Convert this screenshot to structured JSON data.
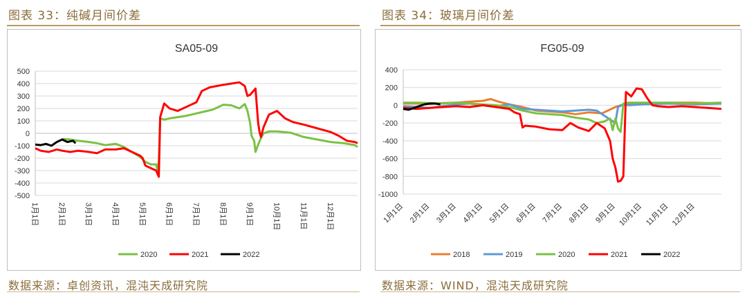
{
  "captions": {
    "left": "图表 33：纯碱月间价差",
    "right": "图表 34：玻璃月间价差"
  },
  "sources": {
    "left": "数据来源：卓创资讯，混沌天成研究院",
    "right": "数据来源：WIND，混沌天成研究院"
  },
  "chart_data": [
    {
      "type": "line",
      "title": "SA05-09",
      "x_domain": [
        1,
        13
      ],
      "x_ticks": [
        "1月1日",
        "2月1日",
        "3月1日",
        "4月1日",
        "5月1日",
        "6月1日",
        "7月1日",
        "8月1日",
        "9月1日",
        "10月1日",
        "11月1日",
        "12月1日"
      ],
      "y_ticks": [
        "500",
        "400",
        "300",
        "200",
        "100",
        "0",
        "-100",
        "-200",
        "-300",
        "-400",
        "-500"
      ],
      "ylim": [
        -500,
        500
      ],
      "grid": true,
      "legend_position": "bottom",
      "series": [
        {
          "name": "2020",
          "color": "#7ac143",
          "points": [
            [
              2.0,
              -45
            ],
            [
              2.3,
              -50
            ],
            [
              2.6,
              -60
            ],
            [
              3.0,
              -70
            ],
            [
              3.3,
              -80
            ],
            [
              3.6,
              -95
            ],
            [
              4.0,
              -85
            ],
            [
              4.3,
              -110
            ],
            [
              4.6,
              -150
            ],
            [
              4.9,
              -190
            ],
            [
              5.1,
              -230
            ],
            [
              5.3,
              -250
            ],
            [
              5.5,
              -250
            ],
            [
              5.55,
              -300
            ],
            [
              5.6,
              -220
            ],
            [
              5.65,
              120
            ],
            [
              5.8,
              110
            ],
            [
              6.0,
              120
            ],
            [
              6.3,
              130
            ],
            [
              6.6,
              140
            ],
            [
              7.0,
              160
            ],
            [
              7.3,
              175
            ],
            [
              7.6,
              190
            ],
            [
              8.0,
              230
            ],
            [
              8.3,
              225
            ],
            [
              8.6,
              200
            ],
            [
              8.8,
              235
            ],
            [
              8.9,
              180
            ],
            [
              9.0,
              80
            ],
            [
              9.05,
              -20
            ],
            [
              9.1,
              -40
            ],
            [
              9.15,
              -60
            ],
            [
              9.2,
              -150
            ],
            [
              9.3,
              -90
            ],
            [
              9.4,
              -40
            ],
            [
              9.5,
              0
            ],
            [
              9.7,
              15
            ],
            [
              10.0,
              15
            ],
            [
              10.5,
              5
            ],
            [
              11.0,
              -30
            ],
            [
              11.5,
              -50
            ],
            [
              12.0,
              -70
            ],
            [
              12.5,
              -80
            ],
            [
              12.9,
              -95
            ],
            [
              13.0,
              -110
            ]
          ]
        },
        {
          "name": "2021",
          "color": "#ff0000",
          "points": [
            [
              1.0,
              -120
            ],
            [
              1.2,
              -140
            ],
            [
              1.5,
              -150
            ],
            [
              1.8,
              -130
            ],
            [
              2.0,
              -140
            ],
            [
              2.3,
              -150
            ],
            [
              2.6,
              -140
            ],
            [
              3.0,
              -150
            ],
            [
              3.3,
              -160
            ],
            [
              3.6,
              -130
            ],
            [
              4.0,
              -130
            ],
            [
              4.3,
              -120
            ],
            [
              4.6,
              -150
            ],
            [
              4.9,
              -180
            ],
            [
              5.0,
              -200
            ],
            [
              5.1,
              -260
            ],
            [
              5.3,
              -280
            ],
            [
              5.5,
              -300
            ],
            [
              5.6,
              -350
            ],
            [
              5.65,
              130
            ],
            [
              5.8,
              240
            ],
            [
              6.0,
              200
            ],
            [
              6.3,
              180
            ],
            [
              6.6,
              210
            ],
            [
              7.0,
              250
            ],
            [
              7.2,
              340
            ],
            [
              7.5,
              370
            ],
            [
              8.0,
              390
            ],
            [
              8.3,
              400
            ],
            [
              8.6,
              410
            ],
            [
              8.8,
              380
            ],
            [
              8.9,
              300
            ],
            [
              9.0,
              310
            ],
            [
              9.2,
              360
            ],
            [
              9.3,
              80
            ],
            [
              9.35,
              10
            ],
            [
              9.4,
              -30
            ],
            [
              9.5,
              50
            ],
            [
              9.7,
              150
            ],
            [
              10.0,
              180
            ],
            [
              10.3,
              120
            ],
            [
              10.6,
              90
            ],
            [
              11.0,
              70
            ],
            [
              11.5,
              40
            ],
            [
              12.0,
              10
            ],
            [
              12.3,
              -20
            ],
            [
              12.6,
              -60
            ],
            [
              12.9,
              -70
            ],
            [
              13.0,
              -80
            ]
          ]
        },
        {
          "name": "2022",
          "color": "#000000",
          "points": [
            [
              1.0,
              -90
            ],
            [
              1.2,
              -95
            ],
            [
              1.4,
              -85
            ],
            [
              1.6,
              -100
            ],
            [
              1.8,
              -70
            ],
            [
              2.0,
              -50
            ],
            [
              2.2,
              -70
            ],
            [
              2.4,
              -60
            ],
            [
              2.5,
              -80
            ]
          ]
        }
      ]
    },
    {
      "type": "line",
      "title": "FG05-09",
      "x_domain": [
        1,
        13
      ],
      "x_ticks": [
        "1月1日",
        "2月1日",
        "3月1日",
        "4月1日",
        "5月1日",
        "6月1日",
        "7月1日",
        "8月1日",
        "9月1日",
        "10月1日",
        "11月1日",
        "12月1日"
      ],
      "y_ticks": [
        "400",
        "200",
        "0",
        "-200",
        "-400",
        "-600",
        "-800",
        "-1000"
      ],
      "ylim": [
        -1000,
        400
      ],
      "grid": true,
      "legend_position": "bottom",
      "series": [
        {
          "name": "2018",
          "color": "#ed7d31",
          "points": [
            [
              1.0,
              20
            ],
            [
              1.5,
              20
            ],
            [
              2.0,
              15
            ],
            [
              2.5,
              25
            ],
            [
              3.0,
              30
            ],
            [
              3.5,
              40
            ],
            [
              4.0,
              50
            ],
            [
              4.3,
              70
            ],
            [
              4.6,
              40
            ],
            [
              5.0,
              10
            ],
            [
              5.5,
              -20
            ],
            [
              6.0,
              -60
            ],
            [
              6.5,
              -70
            ],
            [
              7.0,
              -80
            ],
            [
              7.5,
              -100
            ],
            [
              8.0,
              -80
            ],
            [
              8.5,
              -90
            ],
            [
              9.0,
              -20
            ],
            [
              9.2,
              0
            ],
            [
              9.5,
              10
            ],
            [
              10.0,
              20
            ],
            [
              11.0,
              30
            ],
            [
              12.0,
              30
            ],
            [
              13.0,
              20
            ]
          ]
        },
        {
          "name": "2019",
          "color": "#5b9bd5",
          "points": [
            [
              1.0,
              -10
            ],
            [
              1.5,
              -20
            ],
            [
              2.0,
              -30
            ],
            [
              2.5,
              -10
            ],
            [
              3.0,
              10
            ],
            [
              3.5,
              20
            ],
            [
              4.0,
              0
            ],
            [
              4.5,
              -10
            ],
            [
              5.0,
              10
            ],
            [
              5.5,
              -40
            ],
            [
              6.0,
              -50
            ],
            [
              6.5,
              -60
            ],
            [
              7.0,
              -70
            ],
            [
              7.5,
              -60
            ],
            [
              8.0,
              -50
            ],
            [
              8.3,
              -60
            ],
            [
              8.6,
              -120
            ],
            [
              9.0,
              -200
            ],
            [
              9.1,
              -20
            ],
            [
              9.3,
              10
            ],
            [
              9.5,
              0
            ],
            [
              10.0,
              10
            ],
            [
              11.0,
              20
            ],
            [
              12.0,
              10
            ],
            [
              13.0,
              20
            ]
          ]
        },
        {
          "name": "2020",
          "color": "#7ac143",
          "points": [
            [
              1.0,
              30
            ],
            [
              1.5,
              30
            ],
            [
              2.0,
              25
            ],
            [
              2.5,
              20
            ],
            [
              3.0,
              30
            ],
            [
              3.5,
              20
            ],
            [
              4.0,
              10
            ],
            [
              4.5,
              0
            ],
            [
              5.0,
              -20
            ],
            [
              5.5,
              -60
            ],
            [
              6.0,
              -90
            ],
            [
              6.5,
              -100
            ],
            [
              7.0,
              -110
            ],
            [
              7.5,
              -140
            ],
            [
              8.0,
              -160
            ],
            [
              8.3,
              -200
            ],
            [
              8.6,
              -180
            ],
            [
              8.8,
              -150
            ],
            [
              8.9,
              -280
            ],
            [
              9.0,
              -150
            ],
            [
              9.1,
              -260
            ],
            [
              9.2,
              -300
            ],
            [
              9.3,
              20
            ],
            [
              9.5,
              30
            ],
            [
              10.0,
              30
            ],
            [
              11.0,
              30
            ],
            [
              12.0,
              20
            ],
            [
              13.0,
              30
            ]
          ]
        },
        {
          "name": "2021",
          "color": "#ff0000",
          "points": [
            [
              1.0,
              -30
            ],
            [
              1.5,
              -40
            ],
            [
              2.0,
              -30
            ],
            [
              2.5,
              -20
            ],
            [
              3.0,
              -10
            ],
            [
              3.5,
              -20
            ],
            [
              4.0,
              0
            ],
            [
              4.5,
              -20
            ],
            [
              5.0,
              -40
            ],
            [
              5.2,
              -80
            ],
            [
              5.4,
              -100
            ],
            [
              5.5,
              -250
            ],
            [
              5.6,
              -230
            ],
            [
              6.0,
              -240
            ],
            [
              6.5,
              -270
            ],
            [
              7.0,
              -280
            ],
            [
              7.3,
              -200
            ],
            [
              7.6,
              -250
            ],
            [
              8.0,
              -290
            ],
            [
              8.3,
              -200
            ],
            [
              8.6,
              -260
            ],
            [
              8.8,
              -400
            ],
            [
              8.9,
              -600
            ],
            [
              9.0,
              -700
            ],
            [
              9.1,
              -860
            ],
            [
              9.2,
              -850
            ],
            [
              9.3,
              -800
            ],
            [
              9.4,
              150
            ],
            [
              9.6,
              100
            ],
            [
              9.8,
              190
            ],
            [
              10.0,
              180
            ],
            [
              10.2,
              80
            ],
            [
              10.4,
              0
            ],
            [
              10.6,
              -10
            ],
            [
              11.0,
              -20
            ],
            [
              11.5,
              -10
            ],
            [
              12.0,
              -20
            ],
            [
              12.5,
              -30
            ],
            [
              13.0,
              -40
            ]
          ]
        },
        {
          "name": "2022",
          "color": "#000000",
          "points": [
            [
              1.0,
              -40
            ],
            [
              1.2,
              -50
            ],
            [
              1.4,
              -30
            ],
            [
              1.6,
              -10
            ],
            [
              1.8,
              10
            ],
            [
              2.0,
              20
            ],
            [
              2.2,
              20
            ],
            [
              2.4,
              10
            ]
          ]
        }
      ]
    }
  ]
}
